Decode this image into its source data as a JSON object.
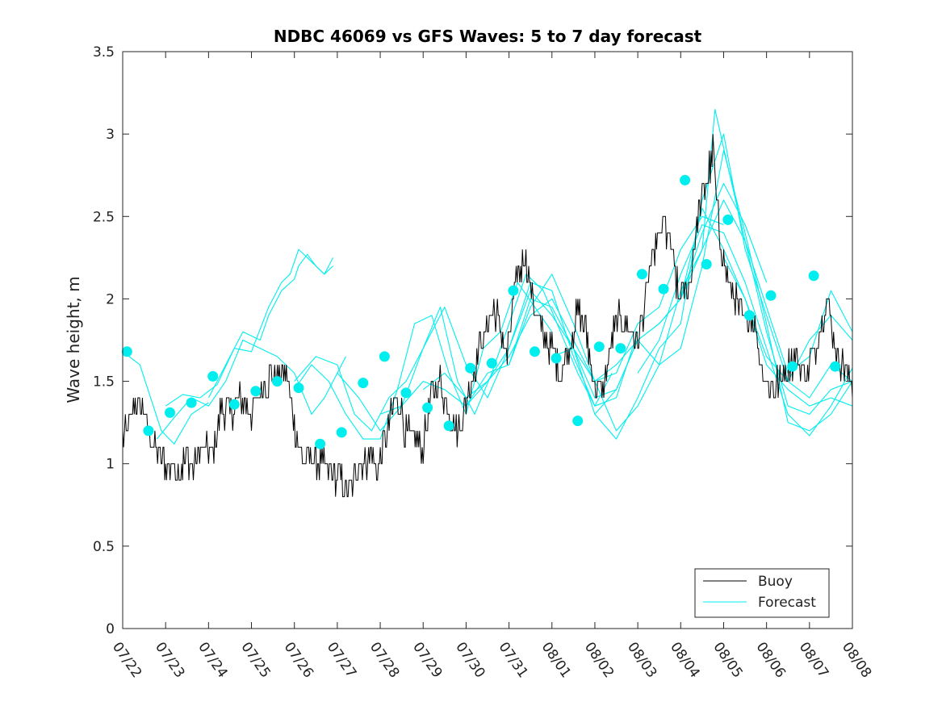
{
  "chart_data": {
    "type": "line",
    "title": "NDBC 46069 vs GFS Waves: 5 to 7 day forecast",
    "xlabel": "",
    "ylabel": "Wave height, m",
    "ylim": [
      0,
      3.5
    ],
    "yticks": [
      "0",
      "0.5",
      "1",
      "1.5",
      "2",
      "2.5",
      "3",
      "3.5"
    ],
    "xlim_days": [
      0,
      17
    ],
    "xticks": [
      "07/22",
      "07/23",
      "07/24",
      "07/25",
      "07/26",
      "07/27",
      "07/28",
      "07/29",
      "07/30",
      "07/31",
      "08/01",
      "08/02",
      "08/03",
      "08/04",
      "08/05",
      "08/06",
      "08/07",
      "08/08"
    ],
    "legend": {
      "position": "bottom-right",
      "entries": [
        "Buoy",
        "Forecast"
      ]
    },
    "colors": {
      "buoy": "#000000",
      "forecast": "#00eeee",
      "axes": "#262626"
    },
    "buoy_anchors": {
      "x": [
        0.0,
        0.1,
        0.3,
        0.5,
        0.7,
        0.9,
        1.0,
        1.3,
        1.5,
        1.6,
        1.9,
        2.1,
        2.3,
        2.5,
        2.8,
        3.0,
        3.3,
        3.6,
        3.8,
        4.0,
        4.2,
        4.4,
        4.6,
        4.8,
        5.1,
        5.3,
        5.5,
        5.8,
        5.95,
        6.2,
        6.4,
        6.6,
        6.8,
        7.0,
        7.2,
        7.4,
        7.6,
        7.8,
        8.0,
        8.2,
        8.4,
        8.6,
        8.8,
        8.95,
        9.2,
        9.35,
        9.55,
        9.75,
        10.0,
        10.2,
        10.4,
        10.6,
        10.8,
        11.0,
        11.2,
        11.4,
        11.6,
        11.8,
        12.0,
        12.2,
        12.4,
        12.6,
        12.8,
        12.95,
        13.2,
        13.4,
        13.6,
        13.75,
        13.9,
        14.1,
        14.3,
        14.5,
        14.7,
        14.9,
        15.1,
        15.3,
        15.5,
        15.7,
        15.9,
        16.1,
        16.25,
        16.4,
        16.6,
        16.8,
        17.0
      ],
      "y": [
        1.15,
        1.2,
        1.35,
        1.3,
        1.1,
        1.05,
        1.0,
        0.95,
        1.05,
        0.95,
        1.1,
        1.05,
        1.35,
        1.3,
        1.4,
        1.3,
        1.5,
        1.55,
        1.55,
        1.25,
        1.0,
        1.05,
        1.0,
        0.95,
        0.9,
        0.82,
        1.0,
        1.05,
        0.95,
        1.25,
        1.4,
        1.2,
        1.15,
        1.1,
        1.4,
        1.5,
        1.3,
        1.2,
        1.35,
        1.6,
        1.75,
        1.95,
        1.85,
        1.65,
        2.15,
        2.25,
        2.0,
        1.8,
        1.7,
        1.55,
        1.7,
        1.95,
        1.8,
        1.45,
        1.45,
        1.75,
        1.9,
        1.8,
        1.75,
        2.05,
        2.3,
        2.45,
        2.3,
        2.0,
        2.1,
        2.5,
        2.7,
        2.9,
        2.4,
        2.1,
        2.0,
        1.85,
        1.9,
        1.55,
        1.45,
        1.5,
        1.6,
        1.65,
        1.55,
        1.65,
        1.85,
        2.0,
        1.7,
        1.6,
        1.5
      ]
    },
    "forecast_runs": [
      {
        "x": [
          0.0,
          0.4,
          0.9,
          1.2,
          1.6,
          2.0
        ],
        "y": [
          1.68,
          1.6,
          1.2,
          1.12,
          1.3,
          1.37
        ]
      },
      {
        "x": [
          0.8,
          1.2,
          1.6,
          2.0,
          2.4,
          2.8,
          3.2,
          3.6,
          4.0,
          4.4,
          4.7,
          4.9,
          5.2
        ],
        "y": [
          1.15,
          1.28,
          1.4,
          1.35,
          1.5,
          1.75,
          1.7,
          1.65,
          1.55,
          1.3,
          1.4,
          1.5,
          1.65
        ]
      },
      {
        "x": [
          1.0,
          1.4,
          1.8,
          2.2,
          2.6,
          3.0,
          3.4,
          3.7,
          3.9,
          4.1,
          4.3,
          4.5,
          4.7,
          4.9
        ],
        "y": [
          1.35,
          1.42,
          1.4,
          1.48,
          1.7,
          1.68,
          1.95,
          2.1,
          2.15,
          2.3,
          2.25,
          2.2,
          2.15,
          2.2
        ]
      },
      {
        "x": [
          2.0,
          2.4,
          2.8,
          3.2,
          3.4,
          3.7,
          4.0,
          4.1,
          4.3,
          4.5,
          4.7,
          4.9
        ],
        "y": [
          1.4,
          1.6,
          1.8,
          1.75,
          1.9,
          2.05,
          2.12,
          2.2,
          2.27,
          2.2,
          2.15,
          2.25
        ]
      },
      {
        "x": [
          4.0,
          4.4,
          4.8,
          5.2,
          5.6,
          6.0,
          6.4,
          6.8,
          7.2,
          7.6,
          8.0,
          8.4,
          8.8,
          9.2,
          9.6,
          10.0
        ],
        "y": [
          1.45,
          1.6,
          1.5,
          1.3,
          1.15,
          1.15,
          1.45,
          1.85,
          1.9,
          1.55,
          1.3,
          1.7,
          1.8,
          2.1,
          1.95,
          1.8
        ]
      },
      {
        "x": [
          4.0,
          4.5,
          5.0,
          5.4,
          5.8,
          6.2,
          6.6,
          7.0,
          7.4,
          7.8,
          8.2,
          8.6,
          9.0,
          9.4,
          9.8,
          10.2,
          10.6,
          11.0,
          11.4
        ],
        "y": [
          1.5,
          1.65,
          1.6,
          1.3,
          1.2,
          1.4,
          1.5,
          1.7,
          1.95,
          1.5,
          1.3,
          1.55,
          1.85,
          2.15,
          2.05,
          1.8,
          1.55,
          1.35,
          1.55
        ]
      },
      {
        "x": [
          5.0,
          5.5,
          6.0,
          6.5,
          7.0,
          7.5,
          8.0,
          8.5,
          9.0,
          9.5,
          10.0,
          10.5,
          11.0,
          11.5,
          12.0
        ],
        "y": [
          1.55,
          1.4,
          1.2,
          1.35,
          1.7,
          1.95,
          1.6,
          1.4,
          1.7,
          2.1,
          2.05,
          1.65,
          1.35,
          1.4,
          1.8
        ]
      },
      {
        "x": [
          6.0,
          6.5,
          7.0,
          7.5,
          8.0,
          8.5,
          9.0,
          9.5,
          10.0,
          10.5,
          11.0,
          11.5,
          12.0,
          12.5,
          13.0,
          13.5,
          14.0
        ],
        "y": [
          1.3,
          1.35,
          1.5,
          1.45,
          1.35,
          1.55,
          1.6,
          2.0,
          1.95,
          1.7,
          1.5,
          1.55,
          1.85,
          1.95,
          2.3,
          2.5,
          2.45
        ]
      },
      {
        "x": [
          7.0,
          7.5,
          8.0,
          8.5,
          9.0,
          9.5,
          10.0,
          10.5,
          11.0,
          11.5,
          12.0,
          12.5,
          13.0,
          13.5,
          14.0,
          14.5,
          15.0
        ],
        "y": [
          1.45,
          1.55,
          1.4,
          1.5,
          1.65,
          1.9,
          2.0,
          1.75,
          1.5,
          1.6,
          1.75,
          1.85,
          2.0,
          2.4,
          2.7,
          2.45,
          2.1
        ]
      },
      {
        "x": [
          8.0,
          8.5,
          9.0,
          9.5,
          10.0,
          10.5,
          11.0,
          11.5,
          12.0,
          12.5,
          13.0,
          13.5,
          14.0,
          14.5,
          15.0,
          15.5,
          16.0,
          16.5,
          17.0
        ],
        "y": [
          1.35,
          1.5,
          1.7,
          2.05,
          1.9,
          1.7,
          1.4,
          1.45,
          1.75,
          1.85,
          2.0,
          2.55,
          2.3,
          2.0,
          1.6,
          1.45,
          1.35,
          1.4,
          1.35
        ]
      },
      {
        "x": [
          9.0,
          9.5,
          10.0,
          10.5,
          11.0,
          11.5,
          12.0,
          12.5,
          13.0,
          13.5,
          13.8,
          14.1,
          14.5,
          15.0,
          15.5,
          16.0,
          16.5,
          17.0
        ],
        "y": [
          1.6,
          1.95,
          2.15,
          1.85,
          1.5,
          1.2,
          1.35,
          1.6,
          2.05,
          2.3,
          3.15,
          2.8,
          2.35,
          1.8,
          1.35,
          1.3,
          1.45,
          1.5
        ]
      },
      {
        "x": [
          10.0,
          10.5,
          11.0,
          11.5,
          12.0,
          12.5,
          13.0,
          13.5,
          14.0,
          14.5,
          15.0,
          15.5,
          16.0,
          16.5,
          17.0
        ],
        "y": [
          1.65,
          1.7,
          1.3,
          1.15,
          1.4,
          1.7,
          1.85,
          2.6,
          3.0,
          2.3,
          1.9,
          1.5,
          1.4,
          1.6,
          1.5
        ]
      },
      {
        "x": [
          11.0,
          11.5,
          12.0,
          12.5,
          13.0,
          13.5,
          14.0,
          14.5,
          15.0,
          15.5,
          16.0,
          16.5,
          17.0
        ],
        "y": [
          1.3,
          1.45,
          1.75,
          1.6,
          1.7,
          2.2,
          2.9,
          2.4,
          1.85,
          1.25,
          1.2,
          1.3,
          1.5
        ]
      },
      {
        "x": [
          12.0,
          12.5,
          13.0,
          13.5,
          14.0,
          14.5,
          15.0,
          15.5,
          16.0,
          16.5,
          17.0
        ],
        "y": [
          1.55,
          1.75,
          2.15,
          2.45,
          2.4,
          2.1,
          1.7,
          1.3,
          1.17,
          1.35,
          1.58
        ]
      },
      {
        "x": [
          13.0,
          13.5,
          14.0,
          14.5,
          15.0,
          15.5,
          16.0,
          16.5,
          17.0
        ],
        "y": [
          2.0,
          2.3,
          2.6,
          2.35,
          1.95,
          1.55,
          1.65,
          2.05,
          1.8
        ]
      },
      {
        "x": [
          14.0,
          14.5,
          15.0,
          15.5,
          16.0,
          16.5,
          17.0
        ],
        "y": [
          2.25,
          2.0,
          1.65,
          1.5,
          1.75,
          1.9,
          1.75
        ]
      }
    ],
    "forecast_points": {
      "x": [
        0.1,
        0.6,
        1.1,
        1.6,
        2.1,
        2.6,
        3.1,
        3.6,
        4.1,
        4.6,
        5.1,
        5.6,
        6.1,
        6.6,
        7.1,
        7.6,
        8.1,
        8.6,
        9.1,
        9.6,
        10.1,
        10.6,
        11.1,
        11.6,
        12.1,
        12.6,
        13.1,
        13.6,
        14.1,
        14.6,
        15.1,
        15.6,
        16.1,
        16.6
      ],
      "y": [
        1.68,
        1.2,
        1.31,
        1.37,
        1.53,
        1.36,
        1.44,
        1.5,
        1.46,
        1.12,
        1.19,
        1.49,
        1.65,
        1.43,
        1.34,
        1.23,
        1.58,
        1.61,
        2.05,
        1.68,
        1.64,
        1.26,
        1.71,
        1.7,
        2.15,
        2.06,
        2.72,
        2.21,
        2.48,
        1.9,
        2.02,
        1.59,
        2.14,
        1.59
      ]
    }
  }
}
